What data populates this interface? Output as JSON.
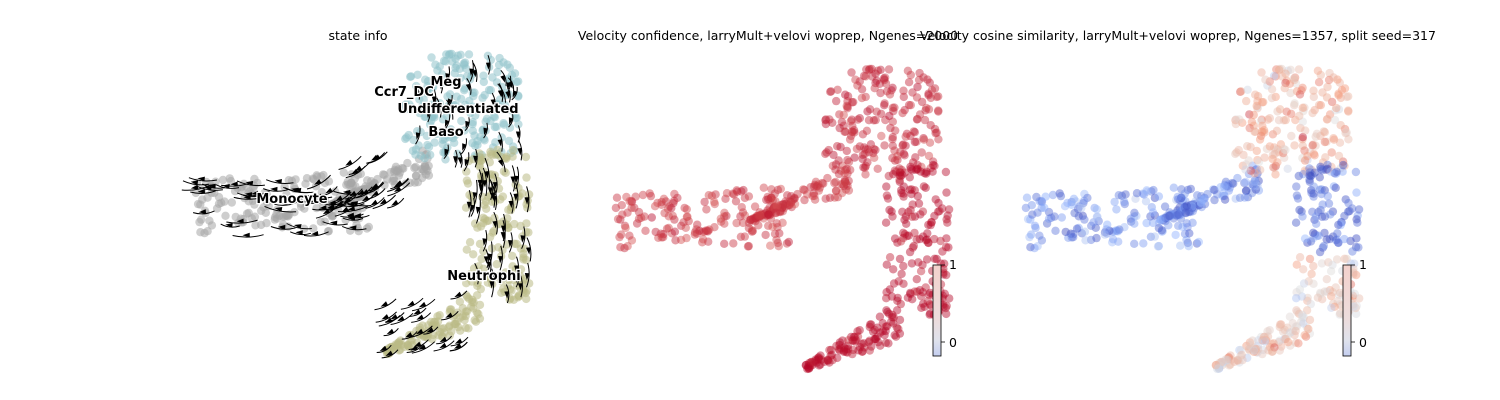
{
  "chart_data": [
    {
      "type": "scatter",
      "title": "state info",
      "clusters": [
        {
          "name": "Meg",
          "color": "#8fc3cb"
        },
        {
          "name": "Ccr7_DC",
          "color": "#8fc3cb"
        },
        {
          "name": "Undifferentiated",
          "color": "#8fc3cb"
        },
        {
          "name": "Baso",
          "color": "#8fc3cb"
        },
        {
          "name": "Monocyte",
          "color": "#a6a6a6"
        },
        {
          "name": "Neutrophil",
          "color": "#b9ba85"
        }
      ],
      "labels": [
        "Meg",
        "Ccr7_DC",
        "Undifferentiated",
        "Baso",
        "Monocyte",
        "Neutrophi"
      ],
      "overlay": "velocity streamlines (black arrows)",
      "grid": false,
      "axes": false
    },
    {
      "type": "scatter",
      "title": "Velocity confidence, larryMult+velovi woprep, Ngenes=2000",
      "colormap": "coolwarm",
      "color_low": "#3b4cc0",
      "color_high": "#b40426",
      "colorbar": {
        "ticks": [
          "0",
          "1"
        ],
        "range": [
          -0.2,
          1
        ]
      },
      "value_summary": {
        "Monocyte": 0.8,
        "Meg": 0.85,
        "Neutrophil": 0.97
      },
      "grid": false,
      "axes": false
    },
    {
      "type": "scatter",
      "title": "Velocity cosine similarity, larryMult+velovi woprep, Ngenes=1357, split seed=317",
      "colormap": "coolwarm",
      "color_low": "#3b4cc0",
      "color_high": "#b40426",
      "colorbar": {
        "ticks": [
          "0",
          "1"
        ],
        "range": [
          -0.2,
          1
        ]
      },
      "value_summary": {
        "Monocyte": 0.0,
        "Meg": 0.6,
        "Neutrophil_upper": -0.1,
        "Neutrophil_lower": 0.5
      },
      "grid": false,
      "axes": false
    }
  ],
  "colors": {
    "black": "#000000",
    "cbar_low": "#c9d3ef",
    "cbar_high": "#f2d3cf"
  }
}
